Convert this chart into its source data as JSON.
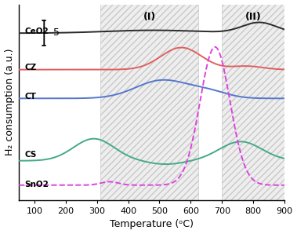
{
  "xlabel": "Temperature (ᵒC)",
  "ylabel": "H₂ consumption (a.u.)",
  "xlim": [
    50,
    900
  ],
  "xticks": [
    100,
    200,
    300,
    400,
    500,
    600,
    700,
    800,
    900
  ],
  "scale_bar_label": "5",
  "region_I": [
    310,
    625
  ],
  "region_II": [
    700,
    900
  ],
  "labels": [
    "CeO2",
    "CZ",
    "CT",
    "CS",
    "SnO2"
  ],
  "colors": [
    "#2b2b2b",
    "#e06060",
    "#5577cc",
    "#44aa88",
    "#dd44dd"
  ],
  "hatch_color": "#aaaaaa",
  "hatch_facecolor": "#e0e0e0"
}
